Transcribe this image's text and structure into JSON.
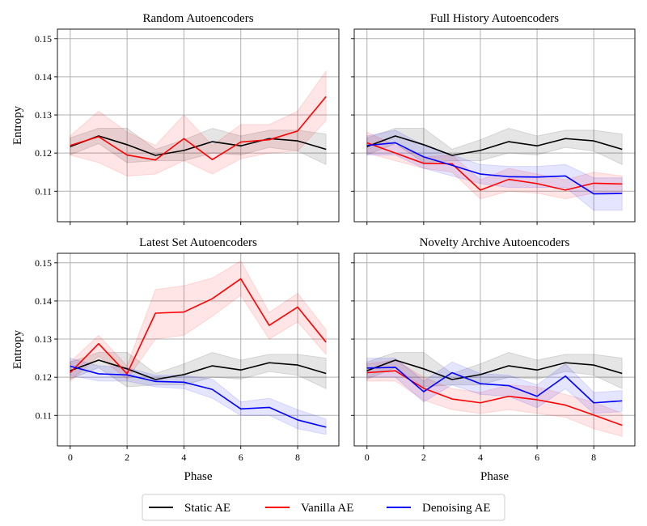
{
  "colors": {
    "static": "#000000",
    "vanilla": "#ff0000",
    "denoising": "#0000ff",
    "grid": "#b0b0b0"
  },
  "legend": {
    "items": [
      {
        "key": "static",
        "label": "Static AE"
      },
      {
        "key": "vanilla",
        "label": "Vanilla AE"
      },
      {
        "key": "denoising",
        "label": "Denoising AE"
      }
    ]
  },
  "chart_data": [
    {
      "type": "line",
      "title": "Random Autoencoders",
      "xlabel": "",
      "ylabel": "Entropy",
      "x": [
        0,
        1,
        2,
        3,
        4,
        5,
        6,
        7,
        8,
        9
      ],
      "xlim": [
        -0.45,
        9.45
      ],
      "ylim": [
        0.102,
        0.1525
      ],
      "xticks": [
        0,
        2,
        4,
        6,
        8
      ],
      "yticks": [
        0.11,
        0.12,
        0.13,
        0.14,
        0.15
      ],
      "grid": true,
      "series": [
        {
          "key": "static",
          "values": [
            0.1217,
            0.1245,
            0.1222,
            0.1194,
            0.1207,
            0.123,
            0.1219,
            0.1238,
            0.1232,
            0.121
          ],
          "lower": [
            0.1195,
            0.1225,
            0.1175,
            0.118,
            0.118,
            0.12,
            0.1195,
            0.1215,
            0.1205,
            0.117
          ],
          "upper": [
            0.124,
            0.1265,
            0.1265,
            0.121,
            0.1235,
            0.1265,
            0.1245,
            0.126,
            0.126,
            0.125
          ]
        },
        {
          "key": "vanilla",
          "values": [
            0.122,
            0.1243,
            0.1195,
            0.1182,
            0.1238,
            0.1183,
            0.1229,
            0.1235,
            0.1258,
            0.1348
          ],
          "lower": [
            0.1195,
            0.1175,
            0.114,
            0.1145,
            0.118,
            0.1145,
            0.1185,
            0.12,
            0.1205,
            0.1285
          ],
          "upper": [
            0.1245,
            0.131,
            0.1255,
            0.122,
            0.13,
            0.122,
            0.1275,
            0.1275,
            0.131,
            0.1415
          ]
        }
      ]
    },
    {
      "type": "line",
      "title": "Full History Autoencoders",
      "xlabel": "",
      "ylabel": "",
      "x": [
        0,
        1,
        2,
        3,
        4,
        5,
        6,
        7,
        8,
        9
      ],
      "xlim": [
        -0.45,
        9.45
      ],
      "ylim": [
        0.102,
        0.1525
      ],
      "xticks": [
        0,
        2,
        4,
        6,
        8
      ],
      "yticks": [
        0.11,
        0.12,
        0.13,
        0.14,
        0.15
      ],
      "grid": true,
      "series": [
        {
          "key": "static",
          "values": [
            0.1217,
            0.1245,
            0.1222,
            0.1194,
            0.1207,
            0.123,
            0.1219,
            0.1238,
            0.1232,
            0.121
          ],
          "lower": [
            0.1195,
            0.1225,
            0.1175,
            0.118,
            0.118,
            0.12,
            0.1195,
            0.1215,
            0.1205,
            0.117
          ],
          "upper": [
            0.124,
            0.1265,
            0.1265,
            0.121,
            0.1235,
            0.1265,
            0.1245,
            0.126,
            0.126,
            0.125
          ]
        },
        {
          "key": "vanilla",
          "values": [
            0.1227,
            0.12,
            0.1173,
            0.1172,
            0.1103,
            0.1131,
            0.112,
            0.1103,
            0.1121,
            0.1119
          ],
          "lower": [
            0.12,
            0.118,
            0.116,
            0.115,
            0.108,
            0.11,
            0.1095,
            0.108,
            0.1095,
            0.1095
          ],
          "upper": [
            0.1255,
            0.122,
            0.119,
            0.1195,
            0.113,
            0.116,
            0.1145,
            0.113,
            0.115,
            0.114
          ]
        },
        {
          "key": "denoising",
          "values": [
            0.122,
            0.1227,
            0.119,
            0.1168,
            0.1145,
            0.1138,
            0.1137,
            0.114,
            0.1093,
            0.1094
          ],
          "lower": [
            0.1195,
            0.1195,
            0.116,
            0.114,
            0.112,
            0.111,
            0.111,
            0.111,
            0.105,
            0.105
          ],
          "upper": [
            0.1245,
            0.126,
            0.122,
            0.1195,
            0.117,
            0.1165,
            0.1165,
            0.117,
            0.1135,
            0.1135
          ]
        }
      ]
    },
    {
      "type": "line",
      "title": "Latest Set Autoencoders",
      "xlabel": "Phase",
      "ylabel": "Entropy",
      "x": [
        0,
        1,
        2,
        3,
        4,
        5,
        6,
        7,
        8,
        9
      ],
      "xlim": [
        -0.45,
        9.45
      ],
      "ylim": [
        0.102,
        0.1525
      ],
      "xticks": [
        0,
        2,
        4,
        6,
        8
      ],
      "yticks": [
        0.11,
        0.12,
        0.13,
        0.14,
        0.15
      ],
      "grid": true,
      "series": [
        {
          "key": "static",
          "values": [
            0.1217,
            0.1245,
            0.1222,
            0.1194,
            0.1207,
            0.123,
            0.1219,
            0.1238,
            0.1232,
            0.121
          ],
          "lower": [
            0.1195,
            0.1225,
            0.1175,
            0.118,
            0.118,
            0.12,
            0.1195,
            0.1215,
            0.1205,
            0.117
          ],
          "upper": [
            0.124,
            0.1265,
            0.1265,
            0.121,
            0.1235,
            0.1265,
            0.1245,
            0.126,
            0.126,
            0.125
          ]
        },
        {
          "key": "vanilla",
          "values": [
            0.1212,
            0.1288,
            0.1209,
            0.1368,
            0.1371,
            0.1406,
            0.1458,
            0.1336,
            0.1384,
            0.1292
          ],
          "lower": [
            0.119,
            0.1255,
            0.1195,
            0.13,
            0.131,
            0.136,
            0.1415,
            0.13,
            0.1345,
            0.126
          ],
          "upper": [
            0.124,
            0.131,
            0.123,
            0.143,
            0.144,
            0.146,
            0.1505,
            0.137,
            0.142,
            0.1325
          ]
        },
        {
          "key": "denoising",
          "values": [
            0.1229,
            0.1209,
            0.1206,
            0.1189,
            0.1187,
            0.1168,
            0.1117,
            0.1121,
            0.1088,
            0.1069
          ],
          "lower": [
            0.1205,
            0.119,
            0.119,
            0.1175,
            0.117,
            0.1145,
            0.11,
            0.11,
            0.1065,
            0.105
          ],
          "upper": [
            0.125,
            0.123,
            0.1225,
            0.1205,
            0.1205,
            0.1195,
            0.1135,
            0.1145,
            0.1115,
            0.109
          ]
        }
      ]
    },
    {
      "type": "line",
      "title": "Novelty Archive Autoencoders",
      "xlabel": "Phase",
      "ylabel": "",
      "x": [
        0,
        1,
        2,
        3,
        4,
        5,
        6,
        7,
        8,
        9
      ],
      "xlim": [
        -0.45,
        9.45
      ],
      "ylim": [
        0.102,
        0.1525
      ],
      "xticks": [
        0,
        2,
        4,
        6,
        8
      ],
      "yticks": [
        0.11,
        0.12,
        0.13,
        0.14,
        0.15
      ],
      "grid": true,
      "series": [
        {
          "key": "static",
          "values": [
            0.1217,
            0.1245,
            0.1222,
            0.1194,
            0.1207,
            0.123,
            0.1219,
            0.1238,
            0.1232,
            0.121
          ],
          "lower": [
            0.1195,
            0.1225,
            0.1175,
            0.118,
            0.118,
            0.12,
            0.1195,
            0.1215,
            0.1205,
            0.117
          ],
          "upper": [
            0.124,
            0.1265,
            0.1265,
            0.121,
            0.1235,
            0.1265,
            0.1245,
            0.126,
            0.126,
            0.125
          ]
        },
        {
          "key": "vanilla",
          "values": [
            0.1212,
            0.1217,
            0.1171,
            0.1143,
            0.1133,
            0.115,
            0.1141,
            0.1127,
            0.1101,
            0.1074
          ],
          "lower": [
            0.119,
            0.119,
            0.114,
            0.1115,
            0.1105,
            0.1115,
            0.1105,
            0.1095,
            0.1065,
            0.1045
          ],
          "upper": [
            0.1235,
            0.1245,
            0.12,
            0.117,
            0.116,
            0.118,
            0.1175,
            0.1155,
            0.1135,
            0.1105
          ]
        },
        {
          "key": "denoising",
          "values": [
            0.1224,
            0.1226,
            0.1162,
            0.1212,
            0.1183,
            0.1178,
            0.115,
            0.1203,
            0.1133,
            0.1138
          ],
          "lower": [
            0.12,
            0.12,
            0.1135,
            0.118,
            0.1155,
            0.115,
            0.112,
            0.117,
            0.1105,
            0.111
          ],
          "upper": [
            0.125,
            0.125,
            0.119,
            0.124,
            0.121,
            0.1205,
            0.118,
            0.1235,
            0.116,
            0.1165
          ]
        }
      ]
    }
  ]
}
